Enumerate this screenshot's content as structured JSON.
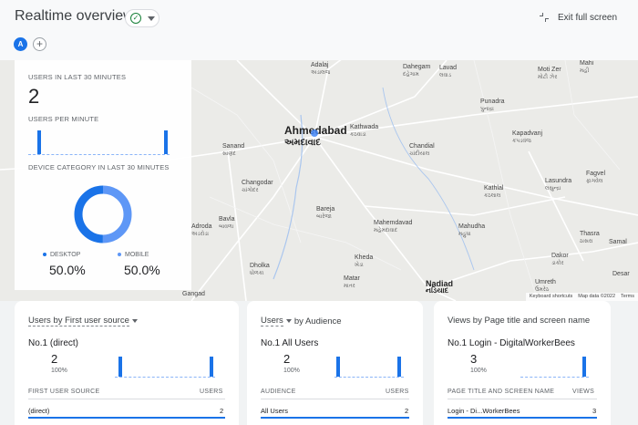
{
  "header": {
    "title": "Realtime overview",
    "exit_label": "Exit full screen",
    "avatar_letter": "A",
    "add_label": "+"
  },
  "overlay": {
    "users_label": "USERS IN LAST 30 MINUTES",
    "users_value": "2",
    "per_minute_label": "USERS PER MINUTE",
    "device_label": "DEVICE CATEGORY IN LAST 30 MINUTES",
    "desktop_label": "DESKTOP",
    "desktop_value": "50.0%",
    "mobile_label": "MOBILE",
    "mobile_value": "50.0%"
  },
  "map": {
    "keyboard": "Keyboard shortcuts",
    "mapdata": "Map data ©2022",
    "terms": "Terms",
    "cities": [
      {
        "en": "Adalaj",
        "gu": "અડાલજ"
      },
      {
        "en": "Dahegam",
        "gu": "દહેગામ"
      },
      {
        "en": "Lavad",
        "gu": "લવાડ"
      },
      {
        "en": "Moti Zer",
        "gu": "મોટી ઝેર"
      },
      {
        "en": "Mahi",
        "gu": "મહી"
      },
      {
        "en": "Punadra",
        "gu": "પુનાદ્રા"
      },
      {
        "en": "Ahmedabad",
        "gu": "અમદાવાદ"
      },
      {
        "en": "Kathwada",
        "gu": "કઠવાડા"
      },
      {
        "en": "Kapadvanj",
        "gu": "કપડવંજ"
      },
      {
        "en": "Sanand",
        "gu": "સાણંદ"
      },
      {
        "en": "Chandial",
        "gu": "ચાંદીયાલ"
      },
      {
        "en": "Kathlal",
        "gu": "કઠલાલ"
      },
      {
        "en": "Lasundra",
        "gu": "લસુન્દ્રા"
      },
      {
        "en": "Fagvel",
        "gu": "ફાગવેલ"
      },
      {
        "en": "Changodar",
        "gu": "ચાંગોદર"
      },
      {
        "en": "Bareja",
        "gu": "બારેજા"
      },
      {
        "en": "Bavla",
        "gu": "બાવળા"
      },
      {
        "en": "Adroda",
        "gu": "અડરોડા"
      },
      {
        "en": "Mahemdavad",
        "gu": "મહેમદાવાદ"
      },
      {
        "en": "Mahudha",
        "gu": "મહુધા"
      },
      {
        "en": "Thasra",
        "gu": "ઠાસરા"
      },
      {
        "en": "Kheda",
        "gu": "ખેડા"
      },
      {
        "en": "Dholka",
        "gu": "ધોળકા"
      },
      {
        "en": "Dakor",
        "gu": "ડાકોર"
      },
      {
        "en": "Matar",
        "gu": "માતર"
      },
      {
        "en": "Nadiad",
        "gu": "નડિયાદ"
      },
      {
        "en": "Umreth",
        "gu": "ઉમરેઠ"
      },
      {
        "en": "Gangad",
        "gu": ""
      },
      {
        "en": "Desar",
        "gu": ""
      },
      {
        "en": "Samal",
        "gu": ""
      }
    ]
  },
  "cards": [
    {
      "title": "Users by First user source",
      "top": "No.1  (direct)",
      "count": "2",
      "pct": "100%",
      "head_left": "FIRST USER SOURCE",
      "head_right": "USERS",
      "row_left": "(direct)",
      "row_right": "2"
    },
    {
      "title_a": "Users",
      "title_b": "by Audience",
      "top": "No.1  All Users",
      "count": "2",
      "pct": "100%",
      "head_left": "AUDIENCE",
      "head_right": "USERS",
      "row_left": "All Users",
      "row_right": "2"
    },
    {
      "title": "Views by Page title and screen name",
      "top": "No.1  Login - DigitalWorkerBees",
      "count": "3",
      "pct": "100%",
      "head_left": "PAGE TITLE AND SCREEN NAME",
      "head_right": "VIEWS",
      "row_left": "Login - Di...WorkerBees",
      "row_right": "3"
    }
  ],
  "colors": {
    "accent": "#1a73e8",
    "desktop": "#1a73e8",
    "mobile": "#5e97f6"
  }
}
